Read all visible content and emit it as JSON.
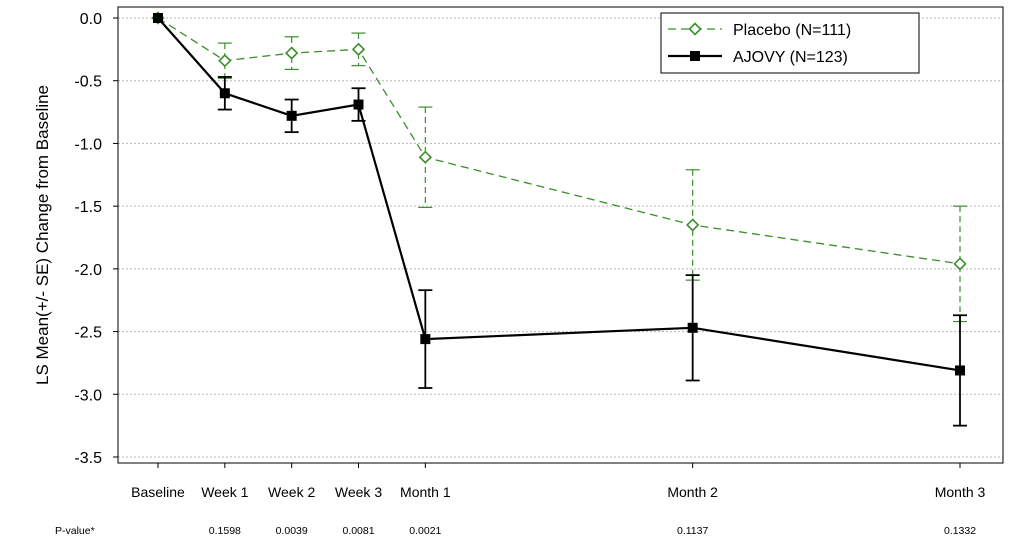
{
  "chart_data": {
    "type": "line",
    "title": "",
    "xlabel": "",
    "ylabel": "LS Mean(+/- SE) Change from Baseline",
    "ylim": [
      -3.5,
      0.0
    ],
    "yticks": [
      0.0,
      -0.5,
      -1.0,
      -1.5,
      -2.0,
      -2.5,
      -3.0,
      -3.5
    ],
    "ytick_labels": [
      "0.0",
      "-0.5",
      "-1.0",
      "-1.5",
      "-2.0",
      "-2.5",
      "-3.0",
      "-3.5"
    ],
    "grid": "horizontal dotted",
    "legend_position": "top-right",
    "x_time_weeks": [
      0,
      1,
      2,
      3,
      4,
      8,
      12
    ],
    "categories": [
      "Baseline",
      "Week 1",
      "Week 2",
      "Week 3",
      "Month 1",
      "Month 2",
      "Month 3"
    ],
    "series": [
      {
        "name": "Placebo (N=111)",
        "color": "#3a8f2a",
        "line_style": "dashed",
        "marker": "open-diamond",
        "values": [
          0.0,
          -0.34,
          -0.28,
          -0.25,
          -1.11,
          -1.65,
          -1.96
        ],
        "se": [
          0.0,
          0.14,
          0.13,
          0.13,
          0.4,
          0.44,
          0.46
        ]
      },
      {
        "name": "AJOVY (N=123)",
        "color": "#000000",
        "line_style": "solid",
        "marker": "filled-square",
        "values": [
          0.0,
          -0.6,
          -0.78,
          -0.69,
          -2.56,
          -2.47,
          -2.81
        ],
        "se": [
          0.0,
          0.13,
          0.13,
          0.13,
          0.39,
          0.42,
          0.44
        ]
      }
    ],
    "pvalue_label": "P-value*",
    "pvalues": [
      "",
      "0.1598",
      "0.0039",
      "0.0081",
      "0.0021",
      "0.1137",
      "0.1332"
    ]
  }
}
